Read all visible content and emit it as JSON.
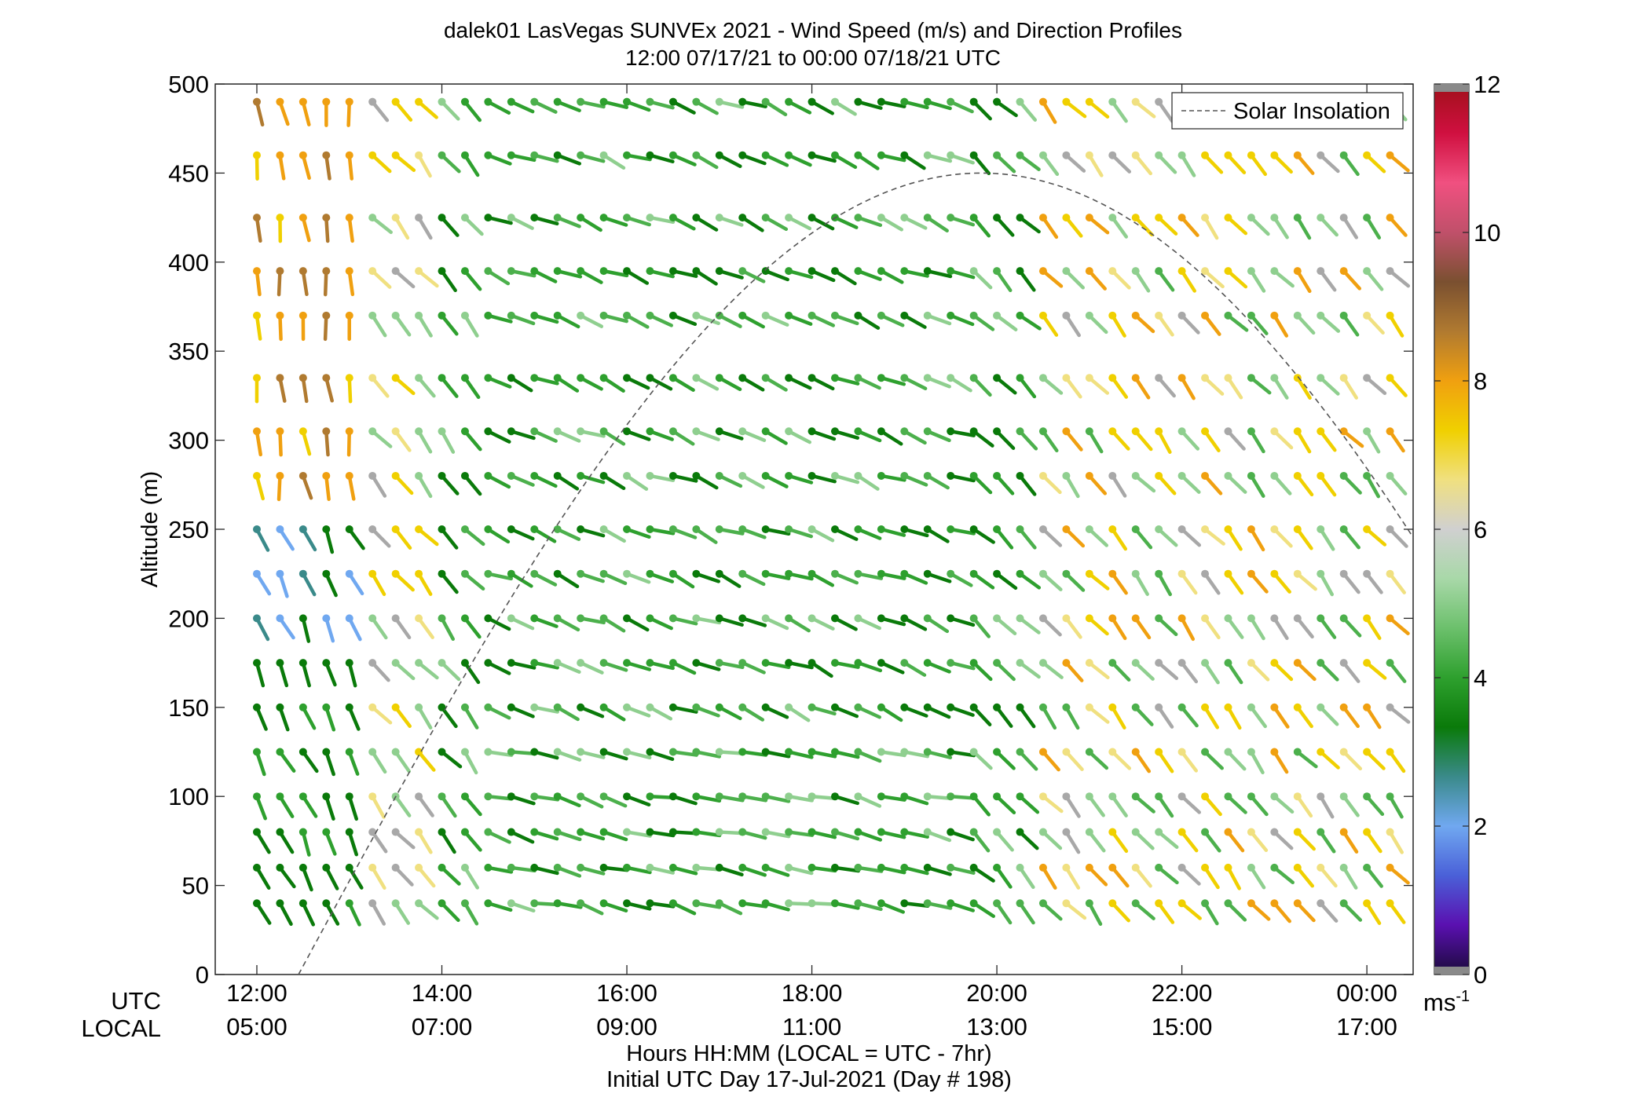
{
  "chart_data": {
    "type": "wind_barb_profile",
    "title": "dalek01 LasVegas SUNVEx 2021 - Wind Speed (m/s) and Direction Profiles",
    "subtitle": "12:00 07/17/21 to 00:00 07/18/21  UTC",
    "ylabel": "Altitude (m)",
    "xlabel": "Hours HH:MM  (LOCAL = UTC - 7hr)",
    "xlabel2": "Initial UTC Day 17-Jul-2021 (Day # 198)",
    "row_label_utc": "UTC",
    "row_label_local": "LOCAL",
    "x_ticks_utc": [
      "12:00",
      "14:00",
      "16:00",
      "18:00",
      "20:00",
      "22:00",
      "00:00"
    ],
    "x_ticks_local": [
      "05:00",
      "07:00",
      "09:00",
      "11:00",
      "13:00",
      "15:00",
      "17:00"
    ],
    "x_tick_hours": [
      12,
      14,
      16,
      18,
      20,
      22,
      24
    ],
    "xlim_hours": [
      11.55,
      24.5
    ],
    "y_ticks": [
      0,
      50,
      100,
      150,
      200,
      250,
      300,
      350,
      400,
      450,
      500
    ],
    "ylim": [
      0,
      500
    ],
    "levels_m": [
      40,
      60,
      80,
      100,
      125,
      150,
      175,
      200,
      225,
      250,
      280,
      305,
      335,
      370,
      395,
      425,
      460,
      490
    ],
    "time_step_hours": 0.25,
    "time_start_hours": 12.0,
    "time_end_hours": 24.25,
    "colorbar": {
      "min": 0,
      "max": 12,
      "ticks": [
        0,
        2,
        4,
        6,
        8,
        10,
        12
      ],
      "unit": "ms",
      "unit_exponent": "-1",
      "gradient": [
        "#1a0a3a",
        "#5a10b0",
        "#4a60d8",
        "#70a8f0",
        "#3a8a8a",
        "#0a7a0a",
        "#2ea02e",
        "#6cc06c",
        "#a8d8a8",
        "#d0d0d0",
        "#f0e080",
        "#f0d000",
        "#f0a010",
        "#b07a30",
        "#7a5030",
        "#c0506a",
        "#f05080",
        "#d01040",
        "#a0101a"
      ]
    },
    "legend": {
      "entries": [
        "Solar Insolation"
      ],
      "placement": "top-right"
    },
    "solar_insolation": {
      "style": "dashed",
      "color": "#555555",
      "peak_altitude_axis": 450,
      "peak_hour_utc": 19.83,
      "zero_hour_utc": 12.45
    },
    "grid": false
  }
}
